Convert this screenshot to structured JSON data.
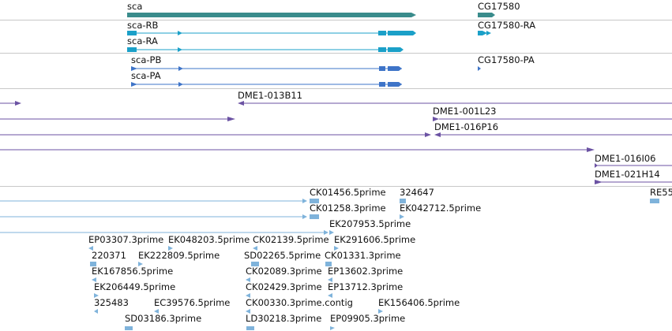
{
  "colors": {
    "gene": "#3a8c8c",
    "transcript_utr": "#1ba0c8",
    "transcript_cds_b": "#3e74c8",
    "bac": "#6b52a3",
    "est": "#7fb3db",
    "divider": "#c8c8c8"
  },
  "genes": [
    {
      "name": "sca",
      "label": "sca"
    },
    {
      "name": "cg17580",
      "label": "CG17580"
    }
  ],
  "transcripts": [
    {
      "name": "sca-rb",
      "label": "sca-RB"
    },
    {
      "name": "sca-ra",
      "label": "sca-RA"
    },
    {
      "name": "cg17580-ra",
      "label": "CG17580-RA"
    },
    {
      "name": "sca-pb",
      "label": "sca-PB"
    },
    {
      "name": "sca-pa",
      "label": "sca-PA"
    },
    {
      "name": "cg17580-pa",
      "label": "CG17580-PA"
    }
  ],
  "bac_clones": [
    {
      "name": "dme1-013b11",
      "label": "DME1-013B11"
    },
    {
      "name": "dme1-001l23",
      "label": "DME1-001L23"
    },
    {
      "name": "dme1-016p16",
      "label": "DME1-016P16"
    },
    {
      "name": "dme1-016i06",
      "label": "DME1-016I06"
    },
    {
      "name": "dme1-021h14",
      "label": "DME1-021H14"
    }
  ],
  "est_labels": [
    {
      "name": "ck01456",
      "label": "CK01456.5prime"
    },
    {
      "name": "e324647",
      "label": "324647"
    },
    {
      "name": "re55",
      "label": "RE55"
    },
    {
      "name": "ck01258",
      "label": "CK01258.3prime"
    },
    {
      "name": "ek042712",
      "label": "EK042712.5prime"
    },
    {
      "name": "ek207953",
      "label": "EK207953.5prime"
    },
    {
      "name": "ep03307",
      "label": "EP03307.3prime"
    },
    {
      "name": "ek048203",
      "label": "EK048203.5prime"
    },
    {
      "name": "ck02139",
      "label": "CK02139.5prime"
    },
    {
      "name": "ek291606",
      "label": "EK291606.5prime"
    },
    {
      "name": "e220371",
      "label": "220371"
    },
    {
      "name": "ek222809",
      "label": "EK222809.5prime"
    },
    {
      "name": "sd02265",
      "label": "SD02265.5prime"
    },
    {
      "name": "ck01331",
      "label": "CK01331.3prime"
    },
    {
      "name": "ek167856",
      "label": "EK167856.5prime"
    },
    {
      "name": "ck02089",
      "label": "CK02089.3prime"
    },
    {
      "name": "ep13602",
      "label": "EP13602.3prime"
    },
    {
      "name": "ek206449",
      "label": "EK206449.5prime"
    },
    {
      "name": "ck02429",
      "label": "CK02429.3prime"
    },
    {
      "name": "ep13712",
      "label": "EP13712.3prime"
    },
    {
      "name": "e325483",
      "label": "325483"
    },
    {
      "name": "ec39576",
      "label": "EC39576.5prime"
    },
    {
      "name": "ck00330",
      "label": "CK00330.3prime.contig"
    },
    {
      "name": "ek156406",
      "label": "EK156406.5prime"
    },
    {
      "name": "sd03186",
      "label": "SD03186.3prime"
    },
    {
      "name": "ld30218",
      "label": "LD30218.3prime"
    },
    {
      "name": "ep09905",
      "label": "EP09905.3prime"
    }
  ]
}
